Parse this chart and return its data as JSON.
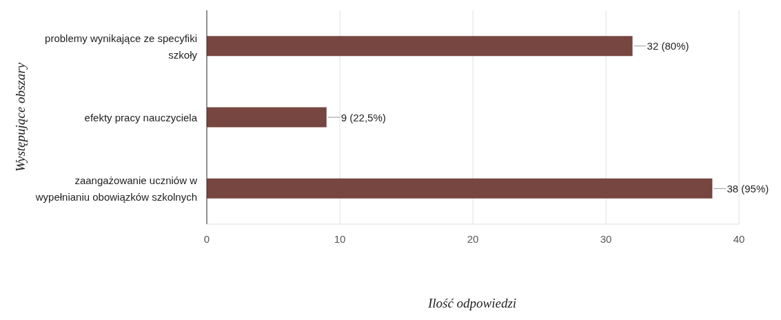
{
  "chart_data": {
    "type": "bar",
    "orientation": "horizontal",
    "xlabel": "Ilość odpowiedzi",
    "ylabel": "Występujące obszary",
    "categories": [
      "problemy wynikające ze specyfiki szkoły",
      "efekty pracy nauczyciela",
      "zaangażowanie uczniów w wypełnianiu obowiązków szkolnych"
    ],
    "values": [
      32,
      9,
      38
    ],
    "value_labels": [
      "32 (80%)",
      "9 (22,5%)",
      "38 (95%)"
    ],
    "color": "#774640",
    "xlim": [
      0,
      40
    ],
    "xticks": [
      0,
      10,
      20,
      30,
      40
    ],
    "grid": "x",
    "legend": false
  }
}
